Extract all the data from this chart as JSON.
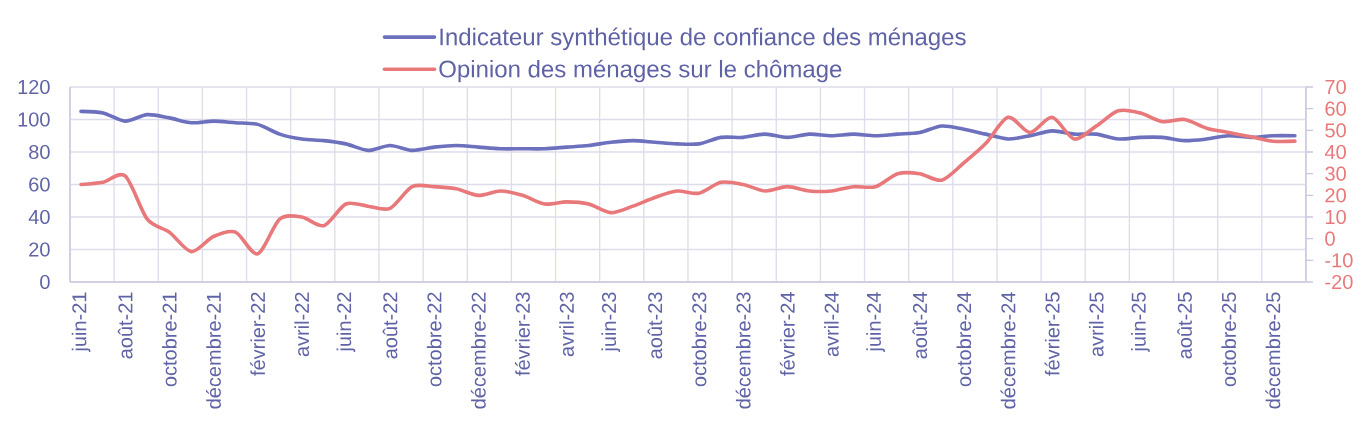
{
  "chart_data": {
    "type": "line",
    "categories": [
      "juin-21",
      null,
      "août-21",
      null,
      "octobre-21",
      null,
      "décembre-21",
      null,
      "février-22",
      null,
      "avril-22",
      null,
      "juin-22",
      null,
      "août-22",
      null,
      "octobre-22",
      null,
      "décembre-22",
      null,
      "février-23",
      null,
      "avril-23",
      null,
      "juin-23",
      null,
      "août-23",
      null,
      "octobre-23",
      null,
      "décembre-23",
      null,
      "février-24",
      null,
      "avril-24",
      null,
      "juin-24",
      null,
      "août-24",
      null,
      "octobre-24",
      null,
      "décembre-24",
      null,
      "février-25",
      null,
      "avril-25",
      null,
      "juin-25",
      null,
      "août-25",
      null,
      "octobre-25",
      null,
      "décembre-25",
      null
    ],
    "series": [
      {
        "name": "Indicateur synthétique de confiance des ménages",
        "color": "#6c70bd",
        "values": [
          105,
          104,
          99,
          103,
          101,
          98,
          99,
          98,
          97,
          91,
          88,
          87,
          85,
          81,
          84,
          81,
          83,
          84,
          83,
          82,
          82,
          82,
          83,
          84,
          86,
          87,
          86,
          85,
          85,
          89,
          89,
          91,
          89,
          91,
          90,
          91,
          90,
          91,
          92,
          96,
          94,
          91,
          88,
          90,
          93,
          91,
          91,
          88,
          89,
          89,
          87,
          88,
          90,
          89,
          90,
          90
        ]
      },
      {
        "name": "Opinion des ménages sur le chômage",
        "color": "#e8787a",
        "axis": "y2",
        "values": [
          25,
          26,
          29,
          9,
          3,
          -6,
          1,
          3,
          -7,
          9,
          10,
          6,
          16,
          15,
          14,
          24,
          24,
          23,
          20,
          22,
          20,
          16,
          17,
          16,
          12,
          15,
          19,
          22,
          21,
          26,
          25,
          22,
          24,
          22,
          22,
          24,
          24,
          30,
          30,
          27,
          35,
          44,
          56,
          49,
          56,
          46,
          52,
          59,
          58,
          54,
          55,
          51,
          49,
          47,
          45,
          45
        ]
      }
    ],
    "ylim": [
      0,
      120
    ],
    "yticks": [
      0,
      20,
      40,
      60,
      80,
      100,
      120
    ],
    "y2lim": [
      -20,
      70
    ],
    "y2ticks": [
      -20,
      -10,
      0,
      10,
      20,
      30,
      40,
      50,
      60,
      70
    ],
    "grid": true,
    "legend": "top",
    "line_style": "solid",
    "marker": "none"
  }
}
